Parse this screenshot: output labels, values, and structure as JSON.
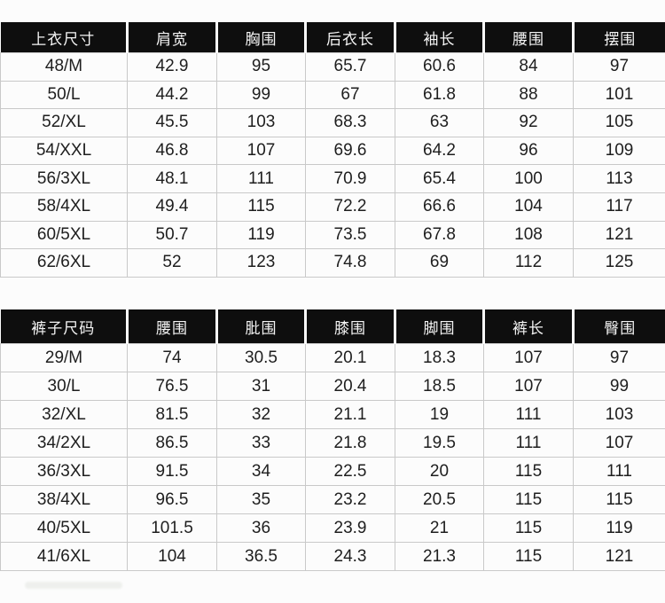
{
  "colors": {
    "page_bg": "#fcfcfc",
    "header_bg": "#0e0e0e",
    "header_text": "#f4f4f4",
    "grid": "#c9c9c9",
    "body_text": "#1e1e1e"
  },
  "chart_data": [
    {
      "type": "table",
      "title": "上衣尺寸",
      "headers": [
        "上衣尺寸",
        "肩宽",
        "胸围",
        "后衣长",
        "袖长",
        "腰围",
        "摆围"
      ],
      "rows": [
        [
          "48/M",
          "42.9",
          "95",
          "65.7",
          "60.6",
          "84",
          "97"
        ],
        [
          "50/L",
          "44.2",
          "99",
          "67",
          "61.8",
          "88",
          "101"
        ],
        [
          "52/XL",
          "45.5",
          "103",
          "68.3",
          "63",
          "92",
          "105"
        ],
        [
          "54/XXL",
          "46.8",
          "107",
          "69.6",
          "64.2",
          "96",
          "109"
        ],
        [
          "56/3XL",
          "48.1",
          "111",
          "70.9",
          "65.4",
          "100",
          "113"
        ],
        [
          "58/4XL",
          "49.4",
          "115",
          "72.2",
          "66.6",
          "104",
          "117"
        ],
        [
          "60/5XL",
          "50.7",
          "119",
          "73.5",
          "67.8",
          "108",
          "121"
        ],
        [
          "62/6XL",
          "52",
          "123",
          "74.8",
          "69",
          "112",
          "125"
        ]
      ]
    },
    {
      "type": "table",
      "title": "裤子尺码",
      "headers": [
        "裤子尺码",
        "腰围",
        "肶围",
        "膝围",
        "脚围",
        "裤长",
        "臀围"
      ],
      "rows": [
        [
          "29/M",
          "74",
          "30.5",
          "20.1",
          "18.3",
          "107",
          "97"
        ],
        [
          "30/L",
          "76.5",
          "31",
          "20.4",
          "18.5",
          "107",
          "99"
        ],
        [
          "32/XL",
          "81.5",
          "32",
          "21.1",
          "19",
          "111",
          "103"
        ],
        [
          "34/2XL",
          "86.5",
          "33",
          "21.8",
          "19.5",
          "111",
          "107"
        ],
        [
          "36/3XL",
          "91.5",
          "34",
          "22.5",
          "20",
          "115",
          "111"
        ],
        [
          "38/4XL",
          "96.5",
          "35",
          "23.2",
          "20.5",
          "115",
          "115"
        ],
        [
          "40/5XL",
          "101.5",
          "36",
          "23.9",
          "21",
          "115",
          "119"
        ],
        [
          "41/6XL",
          "104",
          "36.5",
          "24.3",
          "21.3",
          "115",
          "121"
        ]
      ]
    }
  ]
}
